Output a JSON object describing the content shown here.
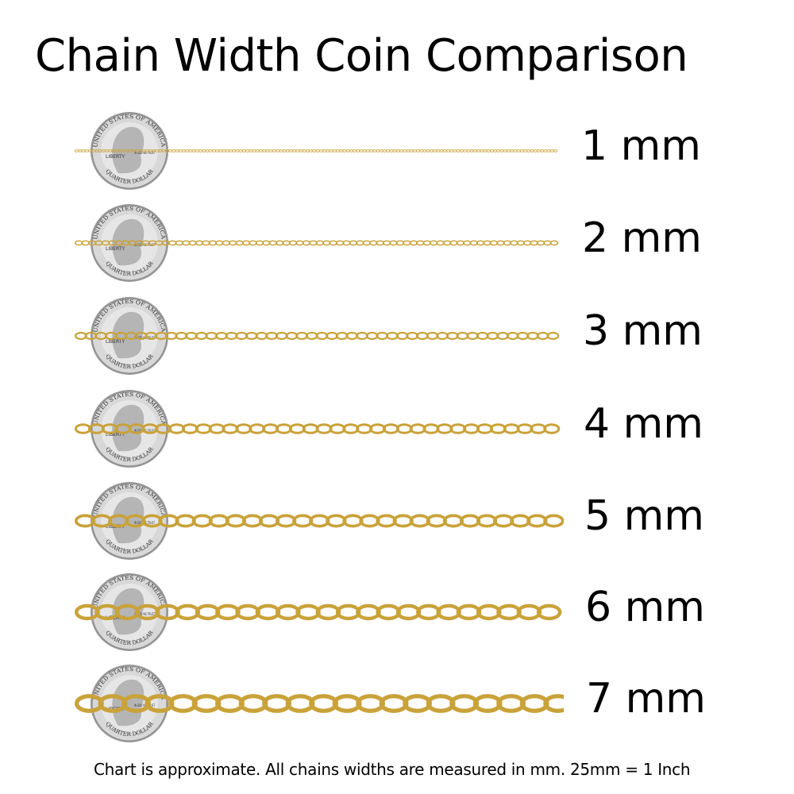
{
  "title": "Chain Width Coin Comparison",
  "coin_lettering": {
    "top": "UNITED STATES OF AMERICA",
    "left": "LIBERTY",
    "right": "IN GOD WE TRUST",
    "bottom": "QUARTER DOLLAR"
  },
  "colors": {
    "gold": "#c9a23a",
    "gold_dark": "#8a6a18",
    "silver": "#d8d8d8"
  },
  "rows": [
    {
      "label": "1 mm",
      "width_mm": 1
    },
    {
      "label": "2 mm",
      "width_mm": 2
    },
    {
      "label": "3 mm",
      "width_mm": 3
    },
    {
      "label": "4 mm",
      "width_mm": 4
    },
    {
      "label": "5 mm",
      "width_mm": 5
    },
    {
      "label": "6 mm",
      "width_mm": 6
    },
    {
      "label": "7 mm",
      "width_mm": 7
    }
  ],
  "footer": "Chart is approximate. All chains widths are measured in mm.  25mm = 1 Inch"
}
